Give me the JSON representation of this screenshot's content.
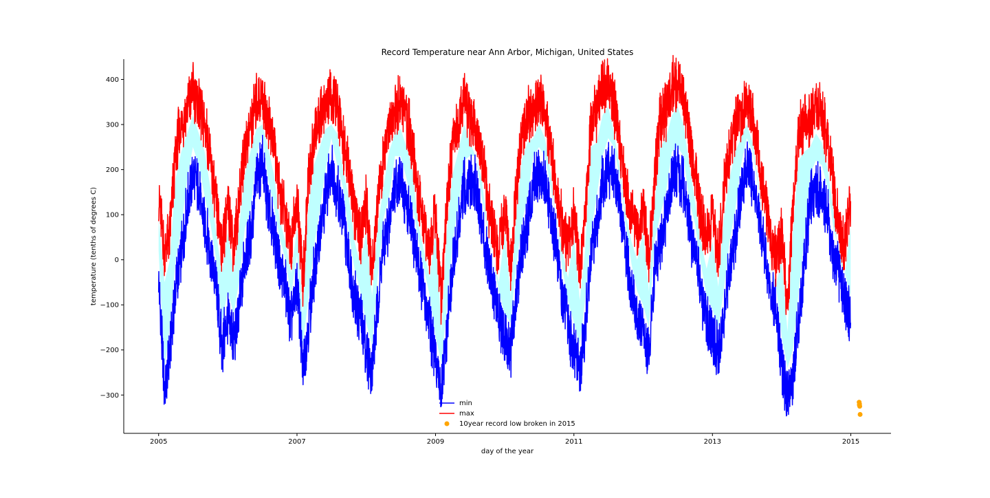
{
  "chart_data": {
    "type": "line",
    "title": "Record Temperature near Ann Arbor, Michigan, United States",
    "xlabel": "day of the year",
    "ylabel": "temperature (tenths of degrees C)",
    "xlim": [
      "2004-07-01",
      "2015-08-01"
    ],
    "ylim": [
      -385,
      445
    ],
    "x_ticks": [
      "2005",
      "2007",
      "2009",
      "2011",
      "2013",
      "2015"
    ],
    "y_ticks": [
      400,
      300,
      200,
      100,
      0,
      -100,
      -200,
      -300
    ],
    "y_tick_labels": [
      "400",
      "300",
      "200",
      "100",
      "0",
      "−100",
      "−200",
      "−300"
    ],
    "legend_position": "lower center",
    "fill_between_color": "#bfffff",
    "series": [
      {
        "name": "min",
        "kind": "line",
        "color": "#0000ff",
        "x": [
          "2005-01-01",
          "2005-02-01",
          "2005-03-01",
          "2005-04-01",
          "2005-05-01",
          "2005-06-01",
          "2005-07-01",
          "2005-08-01",
          "2005-09-01",
          "2005-10-01",
          "2005-11-01",
          "2005-12-01",
          "2006-01-01",
          "2006-02-01",
          "2006-03-01",
          "2006-04-01",
          "2006-05-01",
          "2006-06-01",
          "2006-07-01",
          "2006-08-01",
          "2006-09-01",
          "2006-10-01",
          "2006-11-01",
          "2006-12-01",
          "2007-01-01",
          "2007-02-01",
          "2007-03-01",
          "2007-04-01",
          "2007-05-01",
          "2007-06-01",
          "2007-07-01",
          "2007-08-01",
          "2007-09-01",
          "2007-10-01",
          "2007-11-01",
          "2007-12-01",
          "2008-01-01",
          "2008-02-01",
          "2008-03-01",
          "2008-04-01",
          "2008-05-01",
          "2008-06-01",
          "2008-07-01",
          "2008-08-01",
          "2008-09-01",
          "2008-10-01",
          "2008-11-01",
          "2008-12-01",
          "2009-01-01",
          "2009-02-01",
          "2009-03-01",
          "2009-04-01",
          "2009-05-01",
          "2009-06-01",
          "2009-07-01",
          "2009-08-01",
          "2009-09-01",
          "2009-10-01",
          "2009-11-01",
          "2009-12-01",
          "2010-01-01",
          "2010-02-01",
          "2010-03-01",
          "2010-04-01",
          "2010-05-01",
          "2010-06-01",
          "2010-07-01",
          "2010-08-01",
          "2010-09-01",
          "2010-10-01",
          "2010-11-01",
          "2010-12-01",
          "2011-01-01",
          "2011-02-01",
          "2011-03-01",
          "2011-04-01",
          "2011-05-01",
          "2011-06-01",
          "2011-07-01",
          "2011-08-01",
          "2011-09-01",
          "2011-10-01",
          "2011-11-01",
          "2011-12-01",
          "2012-01-01",
          "2012-02-01",
          "2012-03-01",
          "2012-04-01",
          "2012-05-01",
          "2012-06-01",
          "2012-07-01",
          "2012-08-01",
          "2012-09-01",
          "2012-10-01",
          "2012-11-01",
          "2012-12-01",
          "2013-01-01",
          "2013-02-01",
          "2013-03-01",
          "2013-04-01",
          "2013-05-01",
          "2013-06-01",
          "2013-07-01",
          "2013-08-01",
          "2013-09-01",
          "2013-10-01",
          "2013-11-01",
          "2013-12-01",
          "2014-01-01",
          "2014-02-01",
          "2014-03-01",
          "2014-04-01",
          "2014-05-01",
          "2014-06-01",
          "2014-07-01",
          "2014-08-01",
          "2014-09-01",
          "2014-10-01",
          "2014-11-01",
          "2014-12-01",
          "2014-12-31"
        ],
        "values": [
          -40,
          -300,
          -210,
          -60,
          10,
          120,
          190,
          150,
          80,
          20,
          -60,
          -200,
          -130,
          -180,
          -110,
          10,
          50,
          170,
          220,
          120,
          60,
          -10,
          -60,
          -140,
          -50,
          -250,
          -150,
          -30,
          50,
          140,
          210,
          150,
          100,
          0,
          -80,
          -130,
          -200,
          -250,
          -100,
          30,
          80,
          170,
          170,
          120,
          60,
          -10,
          -80,
          -140,
          -230,
          -290,
          -170,
          -20,
          60,
          160,
          170,
          170,
          80,
          10,
          -60,
          -130,
          -180,
          -200,
          -80,
          20,
          80,
          170,
          190,
          170,
          100,
          30,
          -80,
          -150,
          -200,
          -250,
          -150,
          0,
          80,
          170,
          210,
          190,
          120,
          20,
          -70,
          -130,
          -160,
          -210,
          -20,
          40,
          90,
          180,
          190,
          170,
          70,
          20,
          -70,
          -140,
          -170,
          -210,
          -130,
          -20,
          50,
          150,
          210,
          180,
          100,
          20,
          -60,
          -110,
          -230,
          -300,
          -260,
          -130,
          -10,
          130,
          160,
          150,
          100,
          10,
          -40,
          -90,
          -140
        ]
      },
      {
        "name": "max",
        "kind": "line",
        "color": "#ff0000",
        "x": [
          "2005-01-01",
          "2005-02-01",
          "2005-03-01",
          "2005-04-01",
          "2005-05-01",
          "2005-06-01",
          "2005-07-01",
          "2005-08-01",
          "2005-09-01",
          "2005-10-01",
          "2005-11-01",
          "2005-12-01",
          "2006-01-01",
          "2006-02-01",
          "2006-03-01",
          "2006-04-01",
          "2006-05-01",
          "2006-06-01",
          "2006-07-01",
          "2006-08-01",
          "2006-09-01",
          "2006-10-01",
          "2006-11-01",
          "2006-12-01",
          "2007-01-01",
          "2007-02-01",
          "2007-03-01",
          "2007-04-01",
          "2007-05-01",
          "2007-06-01",
          "2007-07-01",
          "2007-08-01",
          "2007-09-01",
          "2007-10-01",
          "2007-11-01",
          "2007-12-01",
          "2008-01-01",
          "2008-02-01",
          "2008-03-01",
          "2008-04-01",
          "2008-05-01",
          "2008-06-01",
          "2008-07-01",
          "2008-08-01",
          "2008-09-01",
          "2008-10-01",
          "2008-11-01",
          "2008-12-01",
          "2009-01-01",
          "2009-02-01",
          "2009-03-01",
          "2009-04-01",
          "2009-05-01",
          "2009-06-01",
          "2009-07-01",
          "2009-08-01",
          "2009-09-01",
          "2009-10-01",
          "2009-11-01",
          "2009-12-01",
          "2010-01-01",
          "2010-02-01",
          "2010-03-01",
          "2010-04-01",
          "2010-05-01",
          "2010-06-01",
          "2010-07-01",
          "2010-08-01",
          "2010-09-01",
          "2010-10-01",
          "2010-11-01",
          "2010-12-01",
          "2011-01-01",
          "2011-02-01",
          "2011-03-01",
          "2011-04-01",
          "2011-05-01",
          "2011-06-01",
          "2011-07-01",
          "2011-08-01",
          "2011-09-01",
          "2011-10-01",
          "2011-11-01",
          "2011-12-01",
          "2012-01-01",
          "2012-02-01",
          "2012-03-01",
          "2012-04-01",
          "2012-05-01",
          "2012-06-01",
          "2012-07-01",
          "2012-08-01",
          "2012-09-01",
          "2012-10-01",
          "2012-11-01",
          "2012-12-01",
          "2013-01-01",
          "2013-02-01",
          "2013-03-01",
          "2013-04-01",
          "2013-05-01",
          "2013-06-01",
          "2013-07-01",
          "2013-08-01",
          "2013-09-01",
          "2013-10-01",
          "2013-11-01",
          "2013-12-01",
          "2014-01-01",
          "2014-02-01",
          "2014-03-01",
          "2014-04-01",
          "2014-05-01",
          "2014-06-01",
          "2014-07-01",
          "2014-08-01",
          "2014-09-01",
          "2014-10-01",
          "2014-11-01",
          "2014-12-01",
          "2014-12-31"
        ],
        "values": [
          150,
          10,
          60,
          240,
          300,
          340,
          380,
          340,
          300,
          220,
          120,
          30,
          120,
          30,
          130,
          250,
          300,
          350,
          360,
          310,
          250,
          150,
          100,
          30,
          130,
          -60,
          170,
          270,
          310,
          350,
          360,
          340,
          260,
          200,
          100,
          50,
          120,
          -20,
          130,
          220,
          300,
          340,
          350,
          310,
          260,
          140,
          80,
          20,
          120,
          -100,
          120,
          250,
          300,
          360,
          320,
          290,
          240,
          140,
          60,
          10,
          120,
          -20,
          150,
          280,
          320,
          330,
          360,
          330,
          250,
          140,
          80,
          20,
          110,
          -30,
          80,
          310,
          320,
          380,
          400,
          340,
          260,
          160,
          100,
          60,
          120,
          -10,
          180,
          310,
          330,
          380,
          400,
          360,
          270,
          190,
          100,
          40,
          100,
          0,
          150,
          240,
          300,
          330,
          360,
          320,
          230,
          140,
          60,
          0,
          60,
          -100,
          120,
          280,
          300,
          310,
          340,
          320,
          260,
          170,
          60,
          30,
          130
        ]
      },
      {
        "name": "10year record low broken in 2015",
        "kind": "scatter",
        "color": "#ffa500",
        "x": [
          "2015-02-14",
          "2015-02-15",
          "2015-02-16",
          "2015-02-17",
          "2015-02-19"
        ],
        "values": [
          -316,
          -322,
          -320,
          -325,
          -343
        ]
      }
    ]
  }
}
